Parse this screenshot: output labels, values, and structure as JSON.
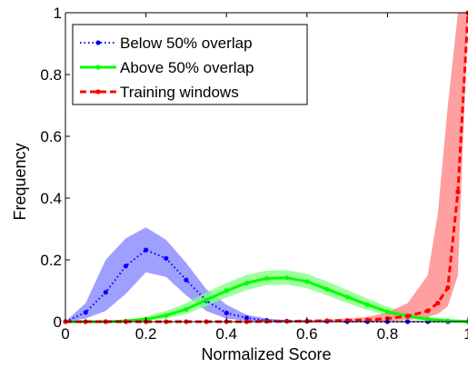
{
  "chart_data": {
    "type": "line",
    "title": "",
    "xlabel": "Normalized Score",
    "ylabel": "Frequency",
    "xlim": [
      0,
      1
    ],
    "ylim": [
      0,
      1
    ],
    "xticks": [
      {
        "value": 0,
        "label": "0"
      },
      {
        "value": 0.2,
        "label": "0.2"
      },
      {
        "value": 0.4,
        "label": "0.4"
      },
      {
        "value": 0.6,
        "label": "0.6"
      },
      {
        "value": 0.8,
        "label": "0.8"
      },
      {
        "value": 1,
        "label": "1"
      }
    ],
    "yticks": [
      {
        "value": 0,
        "label": "0"
      },
      {
        "value": 0.2,
        "label": "0.2"
      },
      {
        "value": 0.4,
        "label": "0.4"
      },
      {
        "value": 0.6,
        "label": "0.6"
      },
      {
        "value": 0.8,
        "label": "0.8"
      },
      {
        "value": 1,
        "label": "1"
      }
    ],
    "grid": false,
    "legend_position": "top-left",
    "series": [
      {
        "name": "Below 50% overlap",
        "color": "#0000ff",
        "band_color": "#7f7fff",
        "line_style": "dotted",
        "x": [
          0,
          0.05,
          0.1,
          0.15,
          0.2,
          0.25,
          0.3,
          0.35,
          0.4,
          0.45,
          0.5,
          0.55,
          0.6,
          0.65,
          0.7,
          0.75,
          0.8,
          0.85,
          0.9,
          0.95,
          1.0
        ],
        "y": [
          0.0,
          0.03,
          0.095,
          0.18,
          0.232,
          0.205,
          0.135,
          0.068,
          0.028,
          0.012,
          0.004,
          0.002,
          0.001,
          0.001,
          0.0,
          0.0,
          0.0,
          0.0,
          0.0,
          0.0,
          0.0
        ],
        "y_lower": [
          0.0,
          0.01,
          0.035,
          0.09,
          0.16,
          0.145,
          0.085,
          0.035,
          0.01,
          0.003,
          0.0,
          0.0,
          0.0,
          0.0,
          0.0,
          0.0,
          0.0,
          0.0,
          0.0,
          0.0,
          0.0
        ],
        "y_upper": [
          0.0,
          0.06,
          0.2,
          0.27,
          0.305,
          0.265,
          0.19,
          0.105,
          0.055,
          0.022,
          0.01,
          0.005,
          0.003,
          0.002,
          0.001,
          0.0,
          0.0,
          0.0,
          0.0,
          0.0,
          0.0
        ]
      },
      {
        "name": "Above 50% overlap",
        "color": "#00ff00",
        "band_color": "#7fff7f",
        "line_style": "solid",
        "x": [
          0,
          0.05,
          0.1,
          0.15,
          0.2,
          0.25,
          0.3,
          0.35,
          0.4,
          0.45,
          0.5,
          0.55,
          0.6,
          0.65,
          0.7,
          0.75,
          0.8,
          0.85,
          0.9,
          0.95,
          1.0
        ],
        "y": [
          0.0,
          0.0,
          0.0,
          0.002,
          0.008,
          0.02,
          0.04,
          0.07,
          0.1,
          0.125,
          0.14,
          0.142,
          0.13,
          0.105,
          0.08,
          0.055,
          0.032,
          0.018,
          0.008,
          0.003,
          0.001
        ],
        "y_lower": [
          0.0,
          0.0,
          0.0,
          0.0,
          0.003,
          0.01,
          0.025,
          0.05,
          0.078,
          0.102,
          0.118,
          0.12,
          0.108,
          0.085,
          0.06,
          0.038,
          0.02,
          0.009,
          0.003,
          0.0,
          0.0
        ],
        "y_upper": [
          0.0,
          0.0,
          0.002,
          0.006,
          0.015,
          0.035,
          0.06,
          0.095,
          0.125,
          0.152,
          0.165,
          0.167,
          0.155,
          0.13,
          0.103,
          0.075,
          0.048,
          0.03,
          0.016,
          0.008,
          0.004
        ]
      },
      {
        "name": "Training windows",
        "color": "#ff0000",
        "band_color": "#ff7f7f",
        "line_style": "dashed",
        "x": [
          0,
          0.05,
          0.1,
          0.15,
          0.2,
          0.25,
          0.3,
          0.35,
          0.4,
          0.45,
          0.5,
          0.55,
          0.6,
          0.65,
          0.7,
          0.75,
          0.8,
          0.85,
          0.9,
          0.925,
          0.95,
          0.975,
          1.0
        ],
        "y": [
          0.0,
          0.0,
          0.0,
          0.0,
          0.0,
          0.0,
          0.0,
          0.0,
          0.0,
          0.0,
          0.001,
          0.001,
          0.002,
          0.003,
          0.004,
          0.006,
          0.01,
          0.018,
          0.035,
          0.06,
          0.11,
          0.42,
          1.0
        ],
        "y_lower": [
          0.0,
          0.0,
          0.0,
          0.0,
          0.0,
          0.0,
          0.0,
          0.0,
          0.0,
          0.0,
          0.0,
          0.0,
          0.0,
          0.0,
          0.0,
          0.0,
          0.002,
          0.005,
          0.015,
          0.025,
          0.05,
          0.15,
          1.0
        ],
        "y_upper": [
          0.0,
          0.0,
          0.0,
          0.0,
          0.0,
          0.0,
          0.0,
          0.0,
          0.0,
          0.001,
          0.002,
          0.003,
          0.005,
          0.007,
          0.01,
          0.015,
          0.03,
          0.06,
          0.15,
          0.35,
          0.7,
          1.0,
          1.0
        ]
      }
    ]
  }
}
